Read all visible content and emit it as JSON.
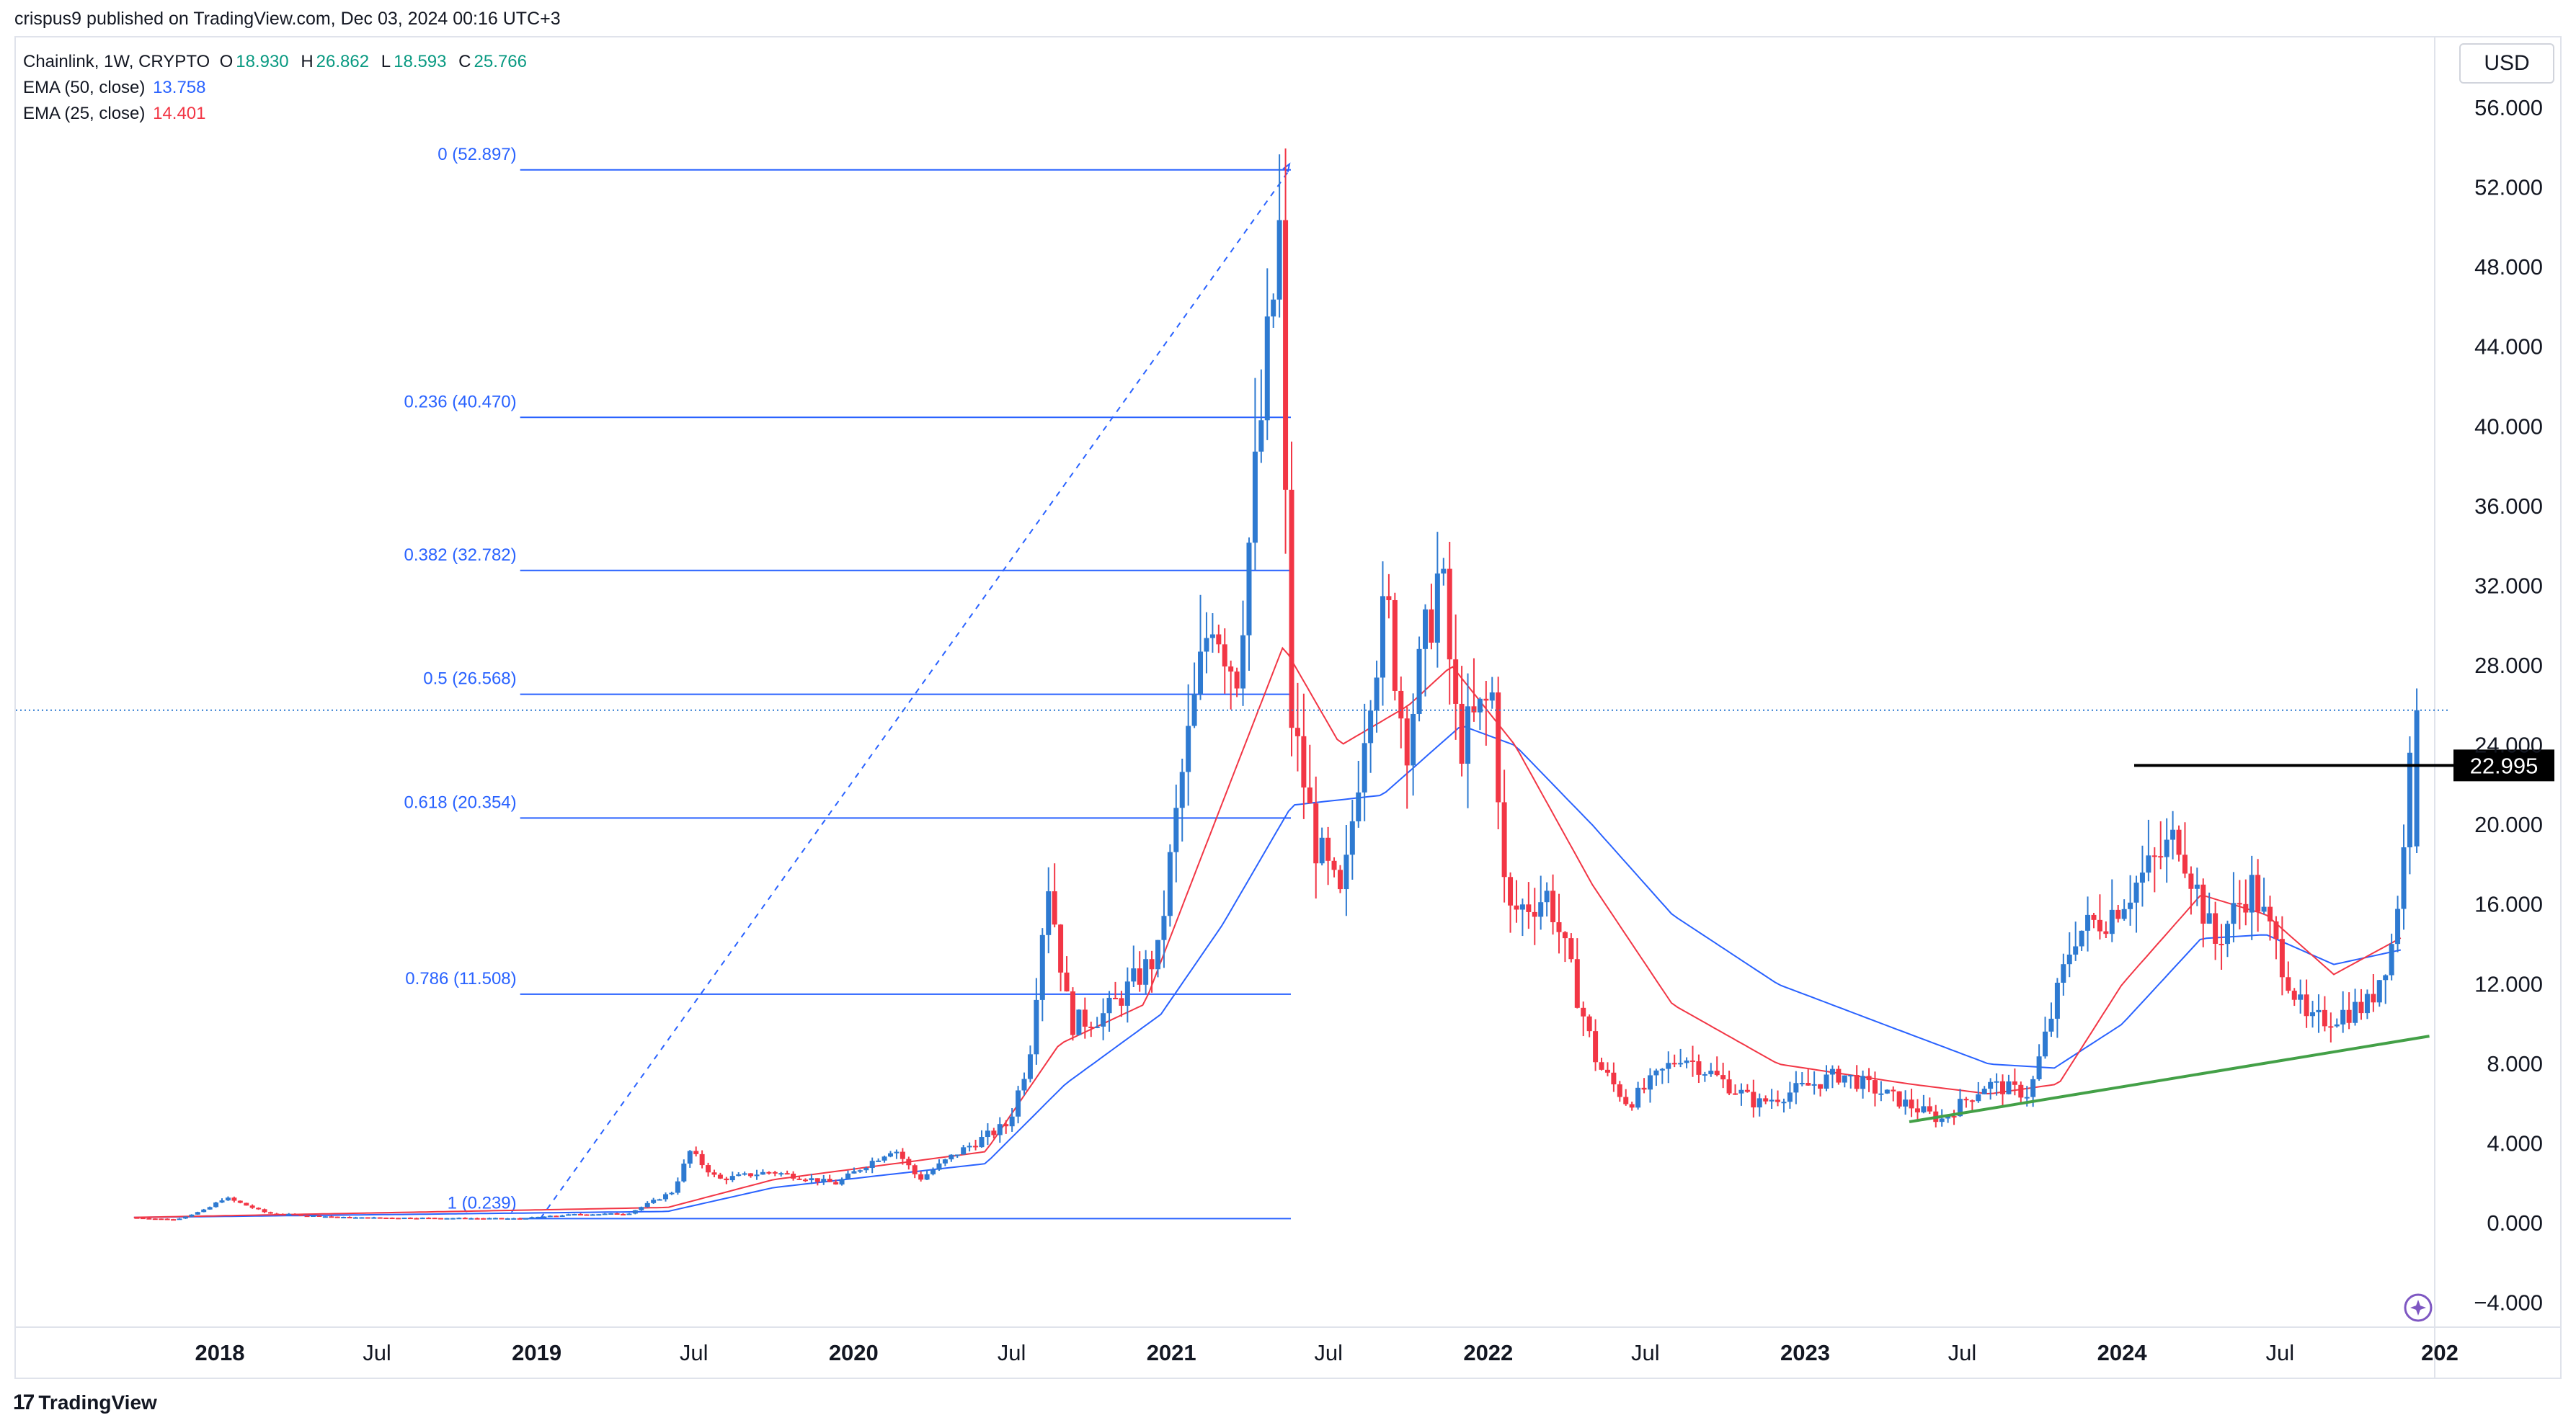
{
  "header": {
    "publish_text": "crispus9 published on TradingView.com, Dec 03, 2024 00:16 UTC+3"
  },
  "legend": {
    "symbol": "Chainlink, 1W, CRYPTO",
    "open_label": "O",
    "open_value": "18.930",
    "high_label": "H",
    "high_value": "26.862",
    "low_label": "L",
    "low_value": "18.593",
    "close_label": "C",
    "close_value": "25.766",
    "ema50_label": "EMA (50, close)",
    "ema50_value": "13.758",
    "ema25_label": "EMA (25, close)",
    "ema25_value": "14.401"
  },
  "currency_button": "USD",
  "footer": {
    "logo_text": "TradingView",
    "logo_mark": "17"
  },
  "colors": {
    "up": "#2e7ad1",
    "down": "#f23645",
    "ema50": "#2962ff",
    "ema25": "#f23645",
    "fib": "#2962ff",
    "trendline": "#43a047",
    "resistance": "#000000",
    "axis_text": "#131722"
  },
  "chart_data": {
    "type": "candlestick",
    "instrument": "Chainlink",
    "timeframe": "1W",
    "ylim": [
      -4,
      58
    ],
    "yticks": [
      -4,
      0,
      4,
      8,
      12,
      16,
      20,
      24,
      28,
      32,
      36,
      40,
      44,
      48,
      52,
      56
    ],
    "ytick_labels": [
      "−4.000",
      "0.000",
      "4.000",
      "8.000",
      "12.000",
      "16.000",
      "20.000",
      "24.000",
      "28.000",
      "32.000",
      "36.000",
      "40.000",
      "44.000",
      "48.000",
      "52.000",
      "56.000"
    ],
    "xticks": [
      {
        "label": "2018",
        "date": "2018-01-01",
        "bold": true
      },
      {
        "label": "Jul",
        "date": "2018-07-01",
        "bold": false
      },
      {
        "label": "2019",
        "date": "2019-01-01",
        "bold": true
      },
      {
        "label": "Jul",
        "date": "2019-07-01",
        "bold": false
      },
      {
        "label": "2020",
        "date": "2020-01-01",
        "bold": true
      },
      {
        "label": "Jul",
        "date": "2020-07-01",
        "bold": false
      },
      {
        "label": "2021",
        "date": "2021-01-01",
        "bold": true
      },
      {
        "label": "Jul",
        "date": "2021-07-01",
        "bold": false
      },
      {
        "label": "2022",
        "date": "2022-01-01",
        "bold": true
      },
      {
        "label": "Jul",
        "date": "2022-07-01",
        "bold": false
      },
      {
        "label": "2023",
        "date": "2023-01-01",
        "bold": true
      },
      {
        "label": "Jul",
        "date": "2023-07-01",
        "bold": false
      },
      {
        "label": "2024",
        "date": "2024-01-01",
        "bold": true
      },
      {
        "label": "Jul",
        "date": "2024-07-01",
        "bold": false
      },
      {
        "label": "202",
        "date": "2025-01-01",
        "bold": true
      }
    ],
    "candles_close_anchors": [
      [
        "2017-09-24",
        0.3
      ],
      [
        "2017-11-15",
        0.2
      ],
      [
        "2017-12-20",
        0.7
      ],
      [
        "2018-01-10",
        1.3
      ],
      [
        "2018-03-01",
        0.5
      ],
      [
        "2018-06-01",
        0.3
      ],
      [
        "2018-12-15",
        0.25
      ],
      [
        "2019-02-15",
        0.45
      ],
      [
        "2019-04-20",
        0.5
      ],
      [
        "2019-06-10",
        1.6
      ],
      [
        "2019-06-30",
        3.6
      ],
      [
        "2019-08-01",
        2.2
      ],
      [
        "2019-10-01",
        2.6
      ],
      [
        "2019-12-15",
        2.0
      ],
      [
        "2020-02-20",
        3.8
      ],
      [
        "2020-03-20",
        2.2
      ],
      [
        "2020-05-01",
        3.5
      ],
      [
        "2020-07-01",
        5.0
      ],
      [
        "2020-07-25",
        8.5
      ],
      [
        "2020-08-15",
        17.5
      ],
      [
        "2020-09-10",
        10.0
      ],
      [
        "2020-10-20",
        10.5
      ],
      [
        "2020-12-20",
        13.5
      ],
      [
        "2021-01-15",
        22.0
      ],
      [
        "2021-02-20",
        31.0
      ],
      [
        "2021-03-20",
        27.5
      ],
      [
        "2021-04-15",
        39.0
      ],
      [
        "2021-05-10",
        50.0
      ],
      [
        "2021-05-20",
        26.0
      ],
      [
        "2021-06-20",
        19.0
      ],
      [
        "2021-07-20",
        16.0
      ],
      [
        "2021-08-20",
        27.0
      ],
      [
        "2021-09-10",
        31.0
      ],
      [
        "2021-10-01",
        24.0
      ],
      [
        "2021-11-10",
        33.0
      ],
      [
        "2021-12-01",
        24.0
      ],
      [
        "2022-01-10",
        26.5
      ],
      [
        "2022-01-25",
        15.5
      ],
      [
        "2022-03-15",
        16.5
      ],
      [
        "2022-05-10",
        8.0
      ],
      [
        "2022-06-15",
        6.0
      ],
      [
        "2022-08-15",
        8.5
      ],
      [
        "2022-11-10",
        6.0
      ],
      [
        "2023-02-15",
        7.5
      ],
      [
        "2023-06-10",
        5.2
      ],
      [
        "2023-08-01",
        7.0
      ],
      [
        "2023-09-20",
        6.5
      ],
      [
        "2023-11-10",
        14.5
      ],
      [
        "2023-12-20",
        15.5
      ],
      [
        "2024-03-10",
        19.5
      ],
      [
        "2024-04-20",
        14.0
      ],
      [
        "2024-06-01",
        17.0
      ],
      [
        "2024-08-05",
        10.0
      ],
      [
        "2024-10-15",
        11.0
      ],
      [
        "2024-11-10",
        14.0
      ],
      [
        "2024-11-25",
        18.9
      ],
      [
        "2024-12-02",
        25.766
      ]
    ],
    "last_candle": {
      "date": "2024-12-02",
      "open": 18.93,
      "high": 26.862,
      "low": 18.593,
      "close": 25.766
    },
    "ema50_anchors": [
      [
        "2017-09-24",
        0.3
      ],
      [
        "2019-06-01",
        0.6
      ],
      [
        "2019-10-01",
        1.8
      ],
      [
        "2020-06-01",
        3.0
      ],
      [
        "2020-09-01",
        7.0
      ],
      [
        "2020-12-20",
        10.5
      ],
      [
        "2021-03-01",
        15.0
      ],
      [
        "2021-05-20",
        21.0
      ],
      [
        "2021-09-01",
        21.5
      ],
      [
        "2021-12-01",
        25.0
      ],
      [
        "2022-02-01",
        24.0
      ],
      [
        "2022-05-01",
        20.0
      ],
      [
        "2022-08-01",
        15.5
      ],
      [
        "2022-12-01",
        12.0
      ],
      [
        "2023-04-01",
        10.0
      ],
      [
        "2023-08-01",
        8.0
      ],
      [
        "2023-10-15",
        7.8
      ],
      [
        "2024-01-01",
        10.0
      ],
      [
        "2024-04-01",
        14.3
      ],
      [
        "2024-06-15",
        14.5
      ],
      [
        "2024-09-01",
        13.0
      ],
      [
        "2024-11-20",
        13.758
      ]
    ],
    "ema25_anchors": [
      [
        "2017-09-24",
        0.3
      ],
      [
        "2019-06-01",
        0.8
      ],
      [
        "2019-10-01",
        2.2
      ],
      [
        "2020-06-01",
        3.6
      ],
      [
        "2020-08-25",
        9.0
      ],
      [
        "2020-12-01",
        11.0
      ],
      [
        "2021-02-01",
        18.0
      ],
      [
        "2021-05-10",
        29.0
      ],
      [
        "2021-07-15",
        24.0
      ],
      [
        "2021-10-01",
        26.0
      ],
      [
        "2021-11-20",
        28.0
      ],
      [
        "2022-02-01",
        24.0
      ],
      [
        "2022-05-01",
        17.0
      ],
      [
        "2022-08-01",
        11.0
      ],
      [
        "2022-12-01",
        8.0
      ],
      [
        "2023-05-01",
        7.0
      ],
      [
        "2023-08-01",
        6.5
      ],
      [
        "2023-10-20",
        7.0
      ],
      [
        "2024-01-01",
        12.0
      ],
      [
        "2024-04-01",
        16.5
      ],
      [
        "2024-06-15",
        15.5
      ],
      [
        "2024-09-01",
        12.5
      ],
      [
        "2024-11-20",
        14.401
      ]
    ],
    "fibonacci": {
      "start_date": "2019-01-01",
      "end_date": "2021-05-17",
      "from_value": 0.239,
      "to_value": 52.897,
      "levels": [
        {
          "ratio": "0",
          "price": 52.897,
          "label": "0 (52.897)"
        },
        {
          "ratio": "0.236",
          "price": 40.47,
          "label": "0.236 (40.470)"
        },
        {
          "ratio": "0.382",
          "price": 32.782,
          "label": "0.382 (32.782)"
        },
        {
          "ratio": "0.5",
          "price": 26.568,
          "label": "0.5 (26.568)"
        },
        {
          "ratio": "0.618",
          "price": 20.354,
          "label": "0.618 (20.354)"
        },
        {
          "ratio": "0.786",
          "price": 11.508,
          "label": "0.786 (11.508)"
        },
        {
          "ratio": "1",
          "price": 0.239,
          "label": "1 (0.239)"
        }
      ]
    },
    "resistance_line": {
      "price": 22.995,
      "start_date": "2024-01-15",
      "end_date": "2024-12-20",
      "label": "22.995"
    },
    "trendline": {
      "start": [
        "2023-05-01",
        5.1
      ],
      "end": [
        "2024-12-20",
        9.4
      ]
    },
    "current_price_line": 25.766
  }
}
